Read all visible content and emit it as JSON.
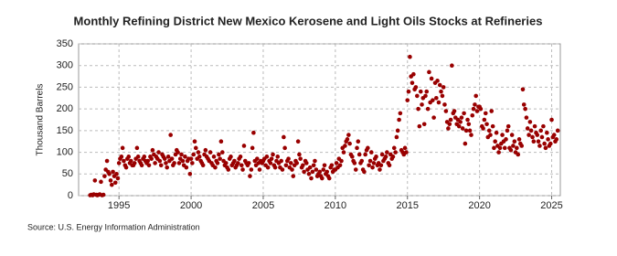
{
  "chart_data": {
    "type": "scatter",
    "title": "Monthly Refining District New Mexico Kerosene and Light Oils Stocks at Refineries",
    "y_label": "Thousand Barrels",
    "source": "Source: U.S. Energy Information Administration",
    "color": "#990000",
    "grid": true,
    "xlim": [
      1992.2,
      2025.6
    ],
    "xticks": [
      1995,
      2000,
      2005,
      2010,
      2015,
      2020,
      2025
    ],
    "ylim": [
      0,
      350
    ],
    "yticks": [
      0,
      50,
      100,
      150,
      200,
      250,
      300,
      350
    ],
    "x": [
      1993.0,
      1993.08,
      1993.17,
      1993.25,
      1993.33,
      1993.42,
      1993.5,
      1993.58,
      1993.67,
      1993.75,
      1993.83,
      1993.92,
      1994.0,
      1994.08,
      1994.17,
      1994.25,
      1994.33,
      1994.42,
      1994.5,
      1994.58,
      1994.67,
      1994.75,
      1994.83,
      1994.92,
      1995.0,
      1995.08,
      1995.17,
      1995.25,
      1995.33,
      1995.42,
      1995.5,
      1995.58,
      1995.67,
      1995.75,
      1995.83,
      1995.92,
      1996.0,
      1996.08,
      1996.17,
      1996.25,
      1996.33,
      1996.42,
      1996.5,
      1996.58,
      1996.67,
      1996.75,
      1996.83,
      1996.92,
      1997.0,
      1997.08,
      1997.17,
      1997.25,
      1997.33,
      1997.42,
      1997.5,
      1997.58,
      1997.67,
      1997.75,
      1997.83,
      1997.92,
      1998.0,
      1998.08,
      1998.17,
      1998.25,
      1998.33,
      1998.42,
      1998.5,
      1998.58,
      1998.67,
      1998.75,
      1998.83,
      1998.92,
      1999.0,
      1999.08,
      1999.17,
      1999.25,
      1999.33,
      1999.42,
      1999.5,
      1999.58,
      1999.67,
      1999.75,
      1999.83,
      1999.92,
      2000.0,
      2000.08,
      2000.17,
      2000.25,
      2000.33,
      2000.42,
      2000.5,
      2000.58,
      2000.67,
      2000.75,
      2000.83,
      2000.92,
      2001.0,
      2001.08,
      2001.17,
      2001.25,
      2001.33,
      2001.42,
      2001.5,
      2001.58,
      2001.67,
      2001.75,
      2001.83,
      2001.92,
      2002.0,
      2002.08,
      2002.17,
      2002.25,
      2002.33,
      2002.42,
      2002.5,
      2002.58,
      2002.67,
      2002.75,
      2002.83,
      2002.92,
      2003.0,
      2003.08,
      2003.17,
      2003.25,
      2003.33,
      2003.42,
      2003.5,
      2003.58,
      2003.67,
      2003.75,
      2003.83,
      2003.92,
      2004.0,
      2004.08,
      2004.17,
      2004.25,
      2004.33,
      2004.42,
      2004.5,
      2004.58,
      2004.67,
      2004.75,
      2004.83,
      2004.92,
      2005.0,
      2005.08,
      2005.17,
      2005.25,
      2005.33,
      2005.42,
      2005.5,
      2005.58,
      2005.67,
      2005.75,
      2005.83,
      2005.92,
      2006.0,
      2006.08,
      2006.17,
      2006.25,
      2006.33,
      2006.42,
      2006.5,
      2006.58,
      2006.67,
      2006.75,
      2006.83,
      2006.92,
      2007.0,
      2007.08,
      2007.17,
      2007.25,
      2007.33,
      2007.42,
      2007.5,
      2007.58,
      2007.67,
      2007.75,
      2007.83,
      2007.92,
      2008.0,
      2008.08,
      2008.17,
      2008.25,
      2008.33,
      2008.42,
      2008.5,
      2008.58,
      2008.67,
      2008.75,
      2008.83,
      2008.92,
      2009.0,
      2009.08,
      2009.17,
      2009.25,
      2009.33,
      2009.42,
      2009.5,
      2009.58,
      2009.67,
      2009.75,
      2009.83,
      2009.92,
      2010.0,
      2010.08,
      2010.17,
      2010.25,
      2010.33,
      2010.42,
      2010.5,
      2010.58,
      2010.67,
      2010.75,
      2010.83,
      2010.92,
      2011.0,
      2011.08,
      2011.17,
      2011.25,
      2011.33,
      2011.42,
      2011.5,
      2011.58,
      2011.67,
      2011.75,
      2011.83,
      2011.92,
      2012.0,
      2012.08,
      2012.17,
      2012.25,
      2012.33,
      2012.42,
      2012.5,
      2012.58,
      2012.67,
      2012.75,
      2012.83,
      2012.92,
      2013.0,
      2013.08,
      2013.17,
      2013.25,
      2013.33,
      2013.42,
      2013.5,
      2013.58,
      2013.67,
      2013.75,
      2013.83,
      2013.92,
      2014.0,
      2014.08,
      2014.17,
      2014.25,
      2014.33,
      2014.42,
      2014.5,
      2014.58,
      2014.67,
      2014.75,
      2014.83,
      2014.92,
      2015.0,
      2015.08,
      2015.17,
      2015.25,
      2015.33,
      2015.42,
      2015.5,
      2015.58,
      2015.67,
      2015.75,
      2015.83,
      2015.92,
      2016.0,
      2016.08,
      2016.17,
      2016.25,
      2016.33,
      2016.42,
      2016.5,
      2016.58,
      2016.67,
      2016.75,
      2016.83,
      2016.92,
      2017.0,
      2017.08,
      2017.17,
      2017.25,
      2017.33,
      2017.42,
      2017.5,
      2017.58,
      2017.67,
      2017.75,
      2017.83,
      2017.92,
      2018.0,
      2018.08,
      2018.17,
      2018.25,
      2018.33,
      2018.42,
      2018.5,
      2018.58,
      2018.67,
      2018.75,
      2018.83,
      2018.92,
      2019.0,
      2019.08,
      2019.17,
      2019.25,
      2019.33,
      2019.42,
      2019.5,
      2019.58,
      2019.67,
      2019.75,
      2019.83,
      2019.92,
      2020.0,
      2020.08,
      2020.17,
      2020.25,
      2020.33,
      2020.42,
      2020.5,
      2020.58,
      2020.67,
      2020.75,
      2020.83,
      2020.92,
      2021.0,
      2021.08,
      2021.17,
      2021.25,
      2021.33,
      2021.42,
      2021.5,
      2021.58,
      2021.67,
      2021.75,
      2021.83,
      2021.92,
      2022.0,
      2022.08,
      2022.17,
      2022.25,
      2022.33,
      2022.42,
      2022.5,
      2022.58,
      2022.67,
      2022.75,
      2022.83,
      2022.92,
      2023.0,
      2023.08,
      2023.17,
      2023.25,
      2023.33,
      2023.42,
      2023.5,
      2023.58,
      2023.67,
      2023.75,
      2023.83,
      2023.92,
      2024.0,
      2024.08,
      2024.17,
      2024.25,
      2024.33,
      2024.42,
      2024.5,
      2024.58,
      2024.67,
      2024.75,
      2024.83,
      2024.92,
      2025.0,
      2025.08,
      2025.17,
      2025.25,
      2025.33,
      2025.42
    ],
    "values": [
      1,
      2,
      1,
      3,
      35,
      2,
      1,
      2,
      3,
      32,
      1,
      2,
      45,
      60,
      80,
      55,
      50,
      35,
      25,
      55,
      45,
      30,
      50,
      40,
      75,
      85,
      90,
      110,
      80,
      70,
      65,
      85,
      90,
      75,
      80,
      70,
      70,
      75,
      85,
      110,
      90,
      80,
      75,
      70,
      85,
      90,
      80,
      75,
      80,
      70,
      90,
      85,
      105,
      95,
      75,
      90,
      85,
      100,
      80,
      70,
      95,
      90,
      85,
      75,
      65,
      90,
      80,
      140,
      85,
      70,
      75,
      95,
      105,
      100,
      75,
      85,
      95,
      80,
      70,
      90,
      65,
      80,
      85,
      50,
      85,
      75,
      95,
      125,
      110,
      85,
      100,
      90,
      80,
      75,
      70,
      95,
      105,
      90,
      85,
      80,
      100,
      75,
      70,
      90,
      65,
      80,
      75,
      95,
      85,
      125,
      100,
      80,
      70,
      75,
      65,
      60,
      85,
      90,
      70,
      75,
      80,
      65,
      70,
      75,
      85,
      90,
      70,
      60,
      115,
      80,
      75,
      70,
      75,
      45,
      60,
      110,
      145,
      80,
      70,
      85,
      75,
      60,
      80,
      75,
      80,
      85,
      70,
      90,
      65,
      80,
      75,
      85,
      95,
      70,
      65,
      80,
      90,
      75,
      65,
      80,
      60,
      135,
      110,
      70,
      80,
      85,
      65,
      75,
      60,
      45,
      70,
      80,
      75,
      125,
      95,
      85,
      65,
      70,
      55,
      80,
      75,
      60,
      50,
      65,
      40,
      55,
      70,
      80,
      60,
      45,
      50,
      55,
      45,
      40,
      60,
      70,
      50,
      55,
      45,
      40,
      65,
      70,
      55,
      60,
      60,
      75,
      65,
      85,
      70,
      80,
      110,
      100,
      115,
      125,
      130,
      140,
      120,
      95,
      90,
      80,
      75,
      60,
      110,
      125,
      95,
      75,
      80,
      60,
      55,
      95,
      105,
      110,
      70,
      80,
      100,
      65,
      75,
      85,
      90,
      70,
      75,
      60,
      70,
      95,
      80,
      85,
      90,
      100,
      75,
      70,
      95,
      85,
      90,
      110,
      100,
      135,
      150,
      175,
      190,
      105,
      100,
      95,
      110,
      100,
      220,
      240,
      320,
      275,
      260,
      280,
      245,
      250,
      230,
      200,
      160,
      240,
      210,
      225,
      165,
      230,
      240,
      200,
      285,
      215,
      270,
      220,
      180,
      260,
      225,
      265,
      215,
      255,
      240,
      230,
      250,
      210,
      195,
      170,
      155,
      165,
      175,
      300,
      190,
      195,
      180,
      165,
      175,
      160,
      170,
      180,
      155,
      190,
      120,
      150,
      175,
      165,
      150,
      140,
      185,
      200,
      210,
      230,
      195,
      205,
      205,
      200,
      160,
      155,
      175,
      190,
      165,
      135,
      150,
      140,
      195,
      160,
      110,
      125,
      145,
      115,
      100,
      110,
      120,
      140,
      125,
      110,
      130,
      150,
      160,
      110,
      105,
      140,
      115,
      125,
      100,
      110,
      95,
      130,
      120,
      115,
      245,
      210,
      200,
      180,
      155,
      140,
      170,
      150,
      135,
      125,
      160,
      145,
      140,
      125,
      115,
      150,
      135,
      160,
      120,
      110,
      145,
      130,
      115,
      120,
      175,
      135,
      140,
      125,
      130,
      150
    ]
  }
}
